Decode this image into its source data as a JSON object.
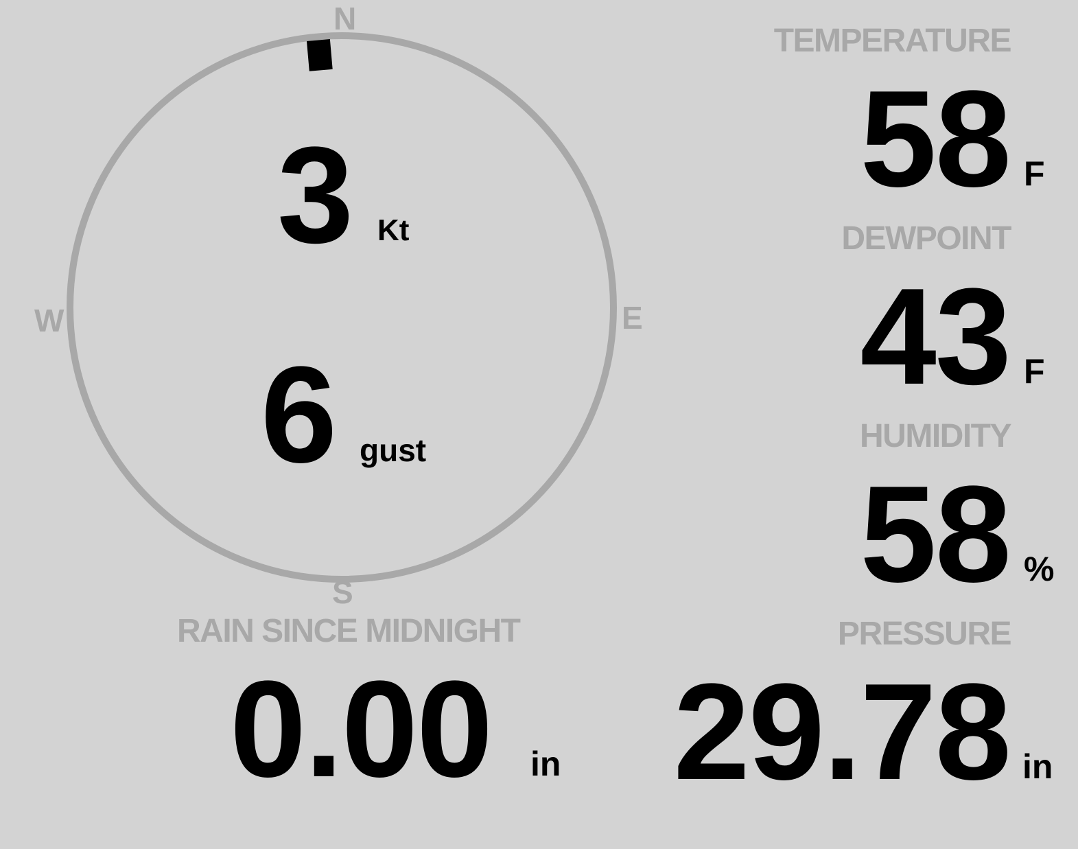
{
  "colors": {
    "background": "#d3d3d3",
    "label": "#a8a8a8",
    "value": "#000000"
  },
  "compass": {
    "n": "N",
    "e": "E",
    "s": "S",
    "w": "W"
  },
  "wind": {
    "speed": "3",
    "speed_unit": "Kt",
    "gust": "6",
    "gust_unit": "gust",
    "direction_deg": 355
  },
  "temperature": {
    "label": "TEMPERATURE",
    "value": "58",
    "unit": "F"
  },
  "dewpoint": {
    "label": "DEWPOINT",
    "value": "43",
    "unit": "F"
  },
  "humidity": {
    "label": "HUMIDITY",
    "value": "58",
    "unit": "%"
  },
  "pressure": {
    "label": "PRESSURE",
    "value": "29.78",
    "unit": "in"
  },
  "rain": {
    "label": "RAIN SINCE MIDNIGHT",
    "value": "0.00",
    "unit": "in"
  }
}
